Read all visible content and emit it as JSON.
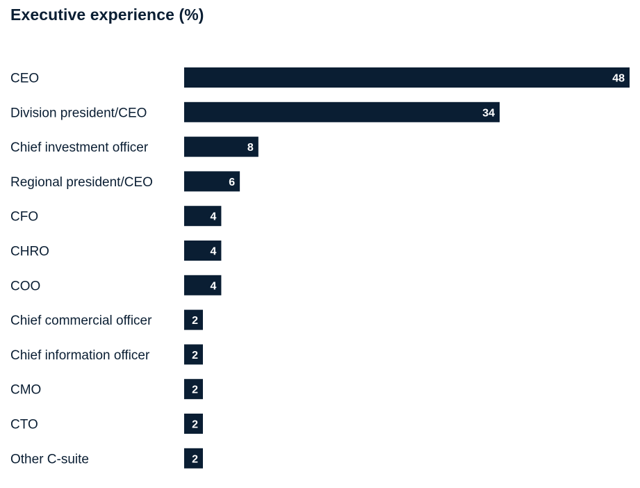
{
  "chart_data": {
    "type": "bar",
    "orientation": "horizontal",
    "title": "Executive experience (%)",
    "xlabel": "",
    "ylabel": "",
    "categories": [
      "CEO",
      "Division president/CEO",
      "Chief investment officer",
      "Regional president/CEO",
      "CFO",
      "CHRO",
      "COO",
      "Chief commercial officer",
      "Chief information officer",
      "CMO",
      "CTO",
      "Other C-suite"
    ],
    "values": [
      48,
      34,
      8,
      6,
      4,
      4,
      4,
      2,
      2,
      2,
      2,
      2
    ],
    "xlim": [
      0,
      48
    ],
    "grid": false,
    "bar_color": "#0a1e33",
    "label_color": "#ffffff"
  }
}
